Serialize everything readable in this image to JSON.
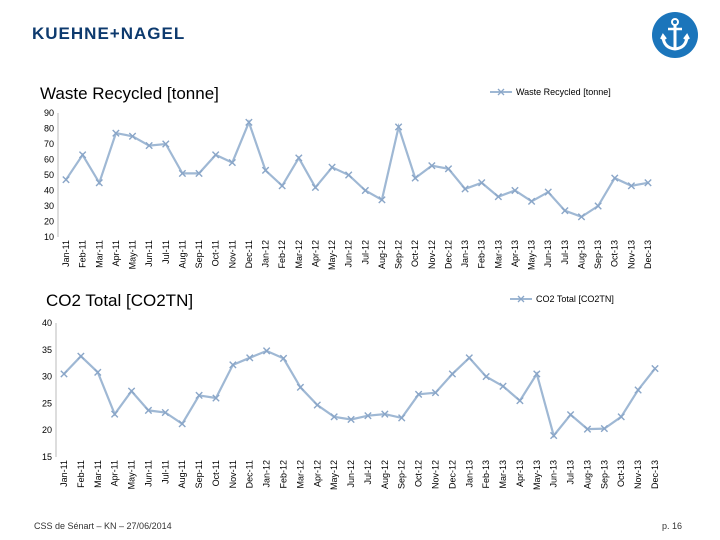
{
  "header": {
    "logo_left": "KUEHNE",
    "logo_plus": "+",
    "logo_right": "NAGEL",
    "brand_color": "#0d3a6e",
    "badge_color": "#1b75bb",
    "badge_icon": "anchor-icon"
  },
  "footer": {
    "left_text": "CSS de Sénart – KN – 27/06/2014",
    "page_number": "p. 16"
  },
  "chart_data": [
    {
      "type": "line",
      "title": "Waste Recycled [tonne]",
      "legend": "Waste Recycled [tonne]",
      "line_color": "#9fb8d4",
      "ylim": [
        10,
        90
      ],
      "yticks": [
        10,
        20,
        30,
        40,
        50,
        60,
        70,
        80,
        90
      ],
      "categories": [
        "Jan-11",
        "Feb-11",
        "Mar-11",
        "Apr-11",
        "May-11",
        "Jun-11",
        "Jul-11",
        "Aug-11",
        "Sep-11",
        "Oct-11",
        "Nov-11",
        "Dec-11",
        "Jan-12",
        "Feb-12",
        "Mar-12",
        "Apr-12",
        "May-12",
        "Jun-12",
        "Jul-12",
        "Aug-12",
        "Sep-12",
        "Oct-12",
        "Nov-12",
        "Dec-12",
        "Jan-13",
        "Feb-13",
        "Mar-13",
        "Apr-13",
        "May-13",
        "Jun-13",
        "Jul-13",
        "Aug-13",
        "Sep-13",
        "Oct-13",
        "Nov-13",
        "Dec-13"
      ],
      "values": [
        47,
        63,
        45,
        77,
        75,
        69,
        70,
        51,
        51,
        63,
        58,
        84,
        53,
        43,
        61,
        42,
        55,
        50,
        40,
        34,
        81,
        48,
        56,
        54,
        41,
        45,
        36,
        40,
        33,
        39,
        27,
        23,
        30,
        48,
        43,
        45
      ]
    },
    {
      "type": "line",
      "title": "CO2 Total [CO2TN]",
      "legend": "CO2 Total [CO2TN]",
      "line_color": "#9fb8d4",
      "ylim": [
        15,
        40
      ],
      "yticks": [
        15,
        20,
        25,
        30,
        35,
        40
      ],
      "categories": [
        "Jan-11",
        "Feb-11",
        "Mar-11",
        "Apr-11",
        "May-11",
        "Jun-11",
        "Jul-11",
        "Aug-11",
        "Sep-11",
        "Oct-11",
        "Nov-11",
        "Dec-11",
        "Jan-12",
        "Feb-12",
        "Mar-12",
        "Apr-12",
        "May-12",
        "Jun-12",
        "Jul-12",
        "Aug-12",
        "Sep-12",
        "Oct-12",
        "Nov-12",
        "Dec-12",
        "Jan-13",
        "Feb-13",
        "Mar-13",
        "Apr-13",
        "May-13",
        "Jun-13",
        "Jul-13",
        "Aug-13",
        "Sep-13",
        "Oct-13",
        "Nov-13",
        "Dec-13"
      ],
      "values": [
        30.5,
        33.8,
        30.8,
        23,
        27.3,
        23.7,
        23.3,
        21.2,
        26.5,
        26,
        32.2,
        33.5,
        34.8,
        33.4,
        28,
        24.7,
        22.5,
        22,
        22.7,
        23,
        22.3,
        26.7,
        27,
        30.5,
        33.5,
        30,
        28.2,
        25.5,
        30.5,
        19,
        22.9,
        20.2,
        20.3,
        22.5,
        27.5,
        31.5
      ]
    }
  ]
}
